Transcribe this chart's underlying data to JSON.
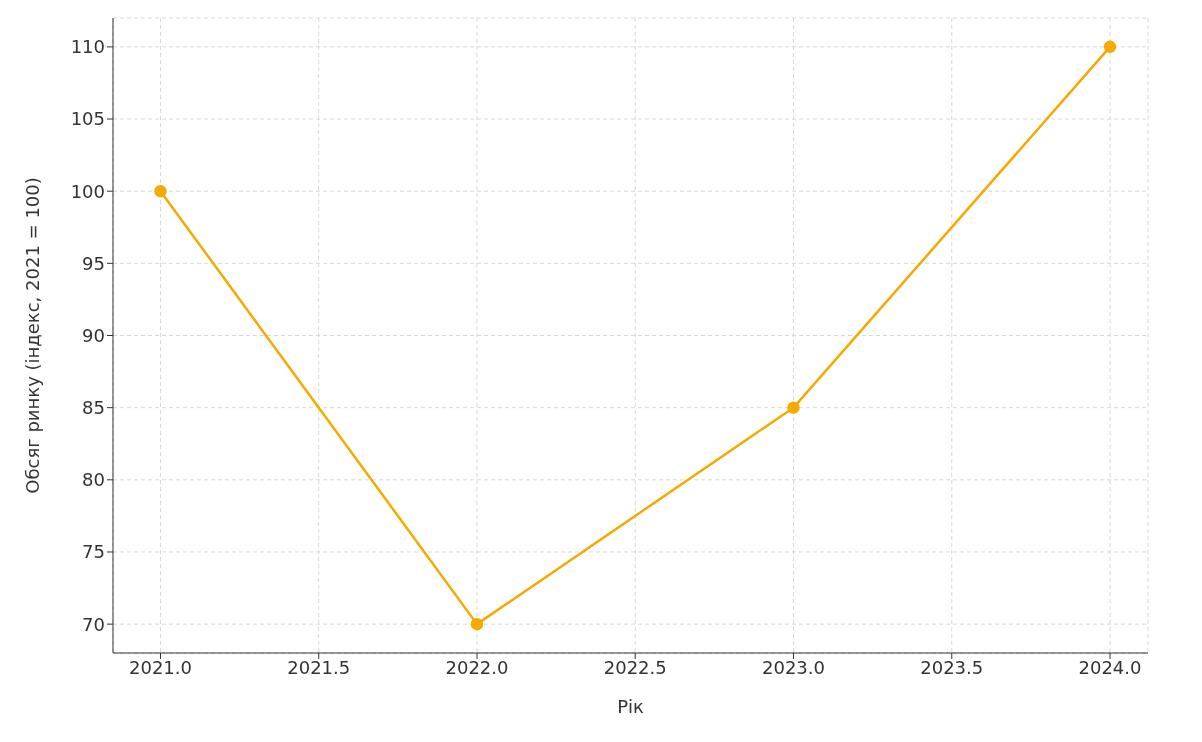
{
  "chart_data": {
    "type": "line",
    "xlabel": "Рік",
    "ylabel": "Обсяг ринку (індекс, 2021 = 100)",
    "x": [
      2021,
      2022,
      2023,
      2024
    ],
    "series": [
      {
        "color": "#f5aa00",
        "values": [
          100,
          70,
          85,
          110
        ]
      }
    ],
    "xlim": [
      2020.85,
      2024.12
    ],
    "xticks": [
      {
        "value": 2021,
        "label": "2021.0"
      },
      {
        "value": 2021.5,
        "label": "2021.5"
      },
      {
        "value": 2022,
        "label": "2022.0"
      },
      {
        "value": 2022.5,
        "label": "2022.5"
      },
      {
        "value": 2023,
        "label": "2023.0"
      },
      {
        "value": 2023.5,
        "label": "2023.5"
      },
      {
        "value": 2024,
        "label": "2024.0"
      }
    ],
    "ylim": [
      68,
      112
    ],
    "yticks": [
      70,
      75,
      80,
      85,
      90,
      95,
      100,
      105,
      110
    ],
    "grid": true,
    "marker": "circle",
    "line_style": "solid"
  }
}
